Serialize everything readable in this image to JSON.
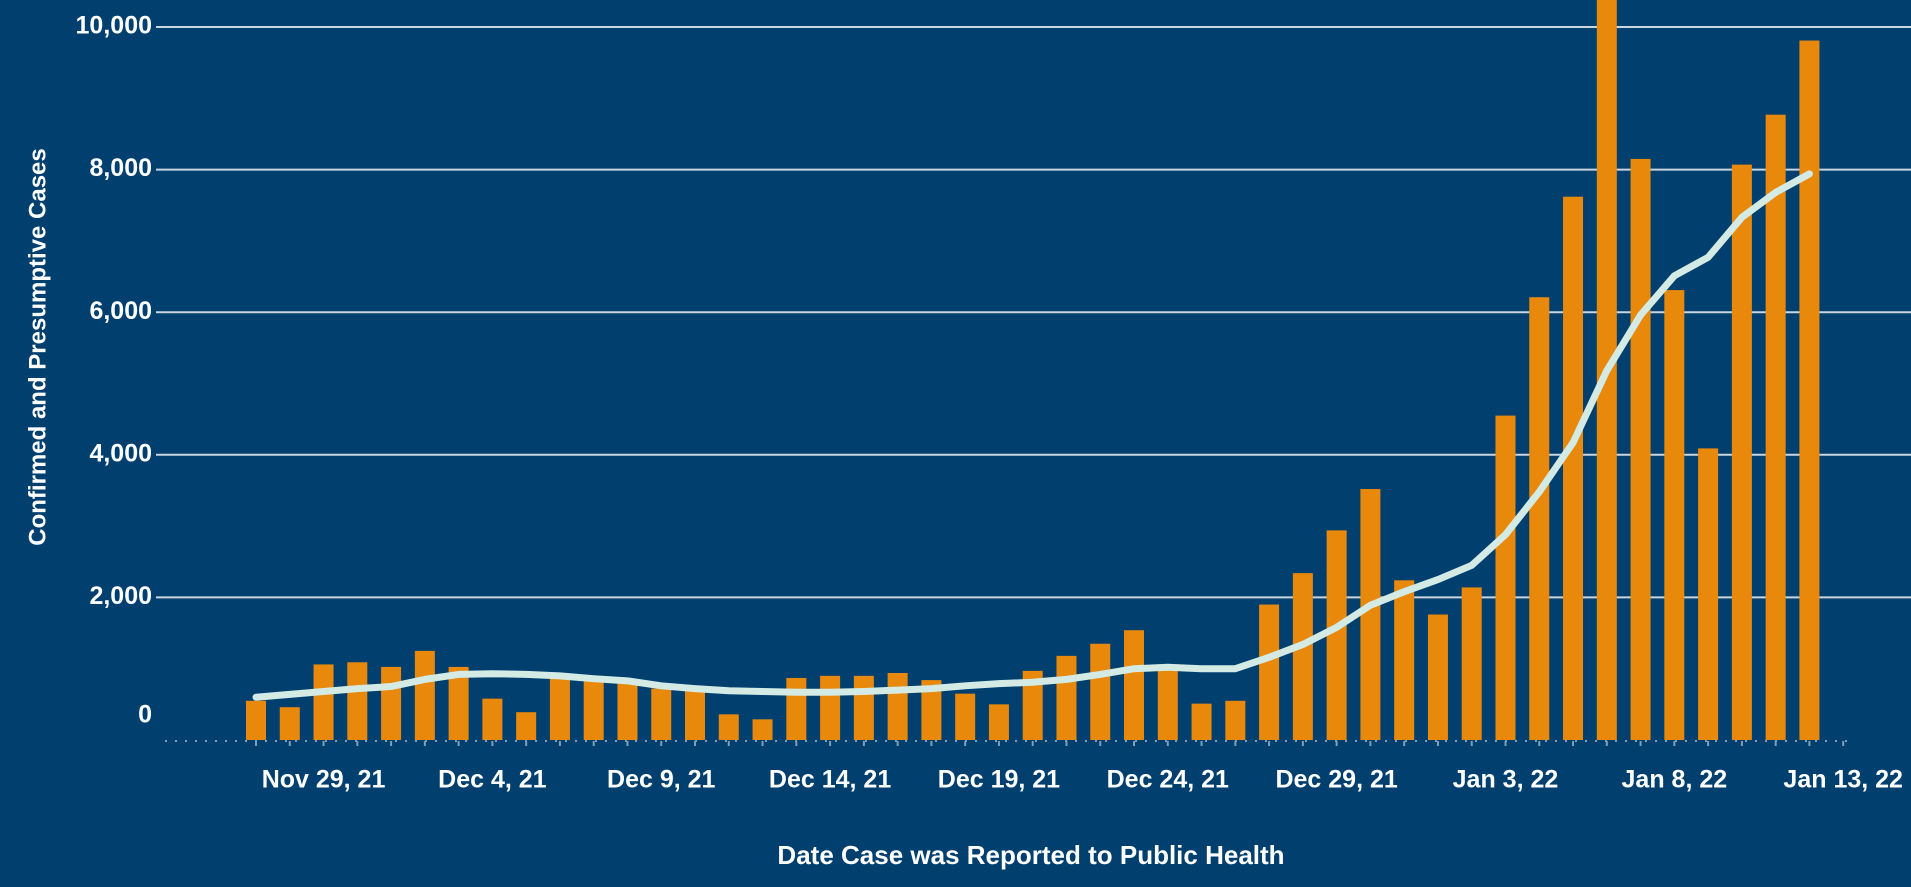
{
  "chart_data": {
    "type": "bar",
    "x_label": "Date Case was Reported to Public Health",
    "y_label": "Confirmed and Presumptive Cases",
    "categories": [
      null,
      null,
      "Nov 29, 21",
      null,
      null,
      null,
      null,
      "Dec 4, 21",
      null,
      null,
      null,
      null,
      "Dec 9, 21",
      null,
      null,
      null,
      null,
      "Dec 14, 21",
      null,
      null,
      null,
      null,
      "Dec 19, 21",
      null,
      null,
      null,
      null,
      "Dec 24, 21",
      null,
      null,
      null,
      null,
      "Dec 29, 21",
      null,
      null,
      null,
      null,
      "Jan 3, 22",
      null,
      null,
      null,
      null,
      "Jan 8, 22",
      null,
      null,
      null,
      null,
      "Jan 13, 22"
    ],
    "series": [
      {
        "type": "bar",
        "color": "#e8890c",
        "values": [
          550,
          460,
          1060,
          1090,
          1025,
          1250,
          1025,
          580,
          390,
          890,
          840,
          800,
          720,
          700,
          360,
          290,
          870,
          900,
          900,
          940,
          840,
          650,
          500,
          970,
          1180,
          1350,
          1540,
          1010,
          510,
          550,
          1900,
          2340,
          2940,
          3520,
          2240,
          1760,
          2140,
          4550,
          6210,
          7620,
          10600,
          8150,
          6310,
          4090,
          8070,
          8770,
          9810,
          null
        ]
      },
      {
        "type": "line",
        "color": "#d3ebe4",
        "values": [
          600,
          640,
          680,
          720,
          750,
          850,
          920,
          930,
          920,
          900,
          860,
          830,
          760,
          720,
          690,
          680,
          670,
          670,
          680,
          700,
          720,
          760,
          790,
          810,
          850,
          920,
          1000,
          1020,
          1000,
          1000,
          1160,
          1340,
          1580,
          1890,
          2080,
          2250,
          2450,
          2880,
          3480,
          4170,
          5180,
          5960,
          6510,
          6770,
          7330,
          7680,
          7940,
          null
        ]
      }
    ],
    "ylim": [
      0,
      10376
    ],
    "yticks": [
      0,
      {
        "value": 2000,
        "label": "2,000"
      },
      {
        "value": 4000,
        "label": "4,000"
      },
      {
        "value": 6000,
        "label": "6,000"
      },
      {
        "value": 8000,
        "label": "8,000"
      },
      {
        "value": 10000,
        "label": "10,000"
      }
    ],
    "grid": true
  }
}
